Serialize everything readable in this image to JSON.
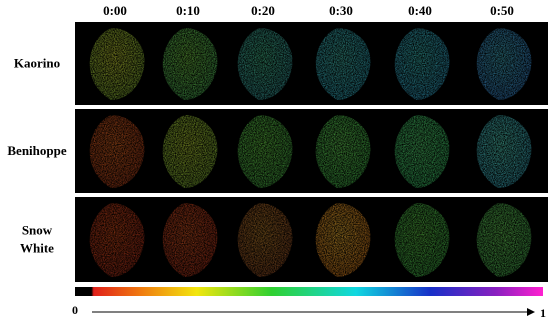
{
  "columns": [
    "0:00",
    "0:10",
    "0:20",
    "0:30",
    "0:40",
    "0:50"
  ],
  "rows": [
    {
      "label_lines": [
        "Kaorino"
      ]
    },
    {
      "label_lines": [
        "Benihoppe"
      ]
    },
    {
      "label_lines": [
        "Snow",
        "White"
      ]
    }
  ],
  "colorbar": {
    "min_label": "0",
    "max_label": "1"
  }
}
